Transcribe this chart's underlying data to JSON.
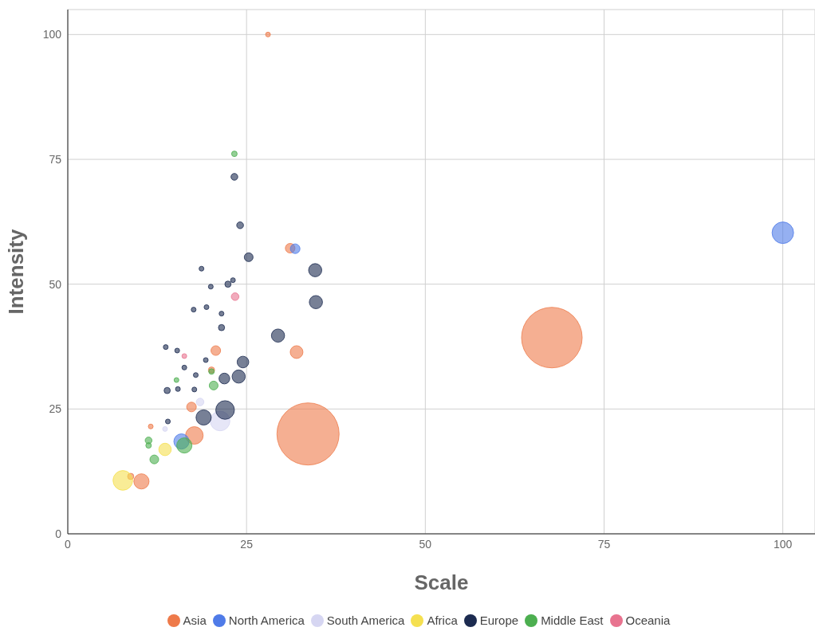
{
  "chart_data": {
    "type": "bubble",
    "xlabel": "Scale",
    "ylabel": "Intensity",
    "xlim": [
      0,
      104.5
    ],
    "ylim": [
      0,
      105
    ],
    "xticks": [
      0,
      25,
      50,
      75,
      100
    ],
    "yticks": [
      0,
      25,
      50,
      75,
      100
    ],
    "grid": true,
    "legend": "bottom",
    "series": [
      {
        "name": "Asia",
        "color": "#ee7a4a",
        "x": [
          28.0,
          31.1,
          32.0,
          33.6,
          67.7,
          20.7,
          17.3,
          17.7,
          11.6,
          10.3,
          8.8,
          20.1
        ],
        "values": [
          100,
          57.2,
          36.4,
          20.0,
          39.3,
          36.7,
          25.4,
          19.7,
          21.5,
          10.5,
          11.5,
          32.8
        ],
        "sizes": [
          0.006,
          0.024,
          0.042,
          1,
          0.95,
          0.024,
          0.024,
          0.08,
          0.006,
          0.06,
          0.01,
          0.01
        ]
      },
      {
        "name": "North America",
        "color": "#4f7be8",
        "x": [
          100,
          31.8,
          15.9
        ],
        "values": [
          60.3,
          57.1,
          18.5
        ],
        "sizes": [
          0.12,
          0.024,
          0.06
        ]
      },
      {
        "name": "South America",
        "color": "#d6d6f2",
        "x": [
          21.3,
          18.5,
          13.6
        ],
        "values": [
          22.6,
          26.4,
          21.0
        ],
        "sizes": [
          0.1,
          0.015,
          0.006
        ]
      },
      {
        "name": "Africa",
        "color": "#f5e050",
        "x": [
          7.7,
          13.6
        ],
        "values": [
          10.7,
          16.9
        ],
        "sizes": [
          0.1,
          0.04
        ]
      },
      {
        "name": "Europe",
        "color": "#1c2b50",
        "x": [
          23.3,
          24.1,
          25.3,
          18.7,
          23.1,
          22.4,
          20.0,
          17.6,
          19.4,
          21.5,
          21.5,
          34.6,
          34.7,
          29.4,
          24.5,
          23.9,
          21.9,
          13.7,
          15.3,
          19.3,
          16.3,
          17.9,
          13.9,
          15.4,
          17.7,
          22.0,
          19.0,
          14.0
        ],
        "values": [
          71.5,
          61.8,
          55.4,
          53.1,
          50.8,
          50.0,
          49.5,
          44.9,
          45.4,
          44.1,
          41.3,
          52.8,
          46.4,
          39.7,
          34.4,
          31.5,
          31.1,
          37.4,
          36.7,
          34.8,
          33.3,
          31.8,
          28.7,
          29.0,
          28.9,
          24.8,
          23.3,
          22.5
        ],
        "sizes": [
          0.012,
          0.012,
          0.02,
          0.006,
          0.006,
          0.01,
          0.006,
          0.006,
          0.006,
          0.006,
          0.01,
          0.045,
          0.045,
          0.045,
          0.035,
          0.045,
          0.03,
          0.006,
          0.006,
          0.006,
          0.006,
          0.006,
          0.01,
          0.006,
          0.006,
          0.09,
          0.06,
          0.006
        ]
      },
      {
        "name": "Middle East",
        "color": "#4caf50",
        "x": [
          23.3,
          15.2,
          20.4,
          11.3,
          11.3,
          12.1,
          16.3,
          20.1
        ],
        "values": [
          76.1,
          30.8,
          29.7,
          18.7,
          17.7,
          14.9,
          17.7,
          32.5
        ],
        "sizes": [
          0.008,
          0.006,
          0.02,
          0.012,
          0.008,
          0.02,
          0.06,
          0.008
        ]
      },
      {
        "name": "Oceania",
        "color": "#e8738f",
        "x": [
          23.4,
          16.3
        ],
        "values": [
          47.5,
          35.6
        ],
        "sizes": [
          0.015,
          0.006
        ]
      }
    ]
  }
}
